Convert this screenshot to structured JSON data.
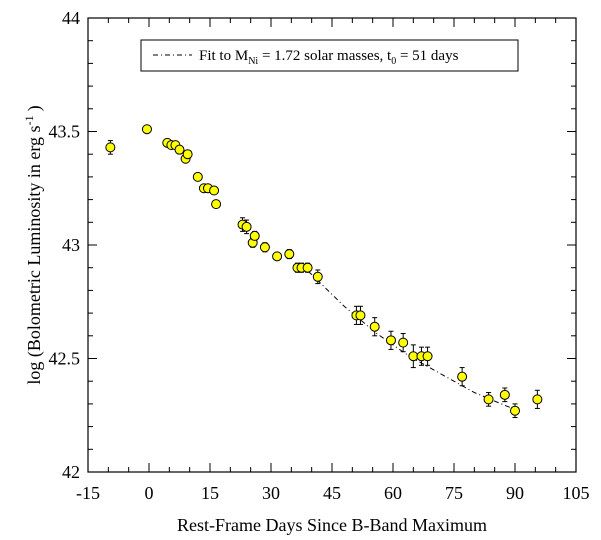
{
  "chart_data": {
    "type": "scatter",
    "xlabel": "Rest-Frame Days Since B-Band Maximum",
    "ylabel_main": "log (Bolometric Luminosity in erg s",
    "ylabel_sup": "-1",
    "ylabel_close": ")",
    "xlim": [
      -15,
      105
    ],
    "ylim": [
      42,
      44
    ],
    "xticks": [
      -15,
      0,
      15,
      30,
      45,
      60,
      75,
      90,
      105
    ],
    "xtick_labels": [
      "-15",
      "0",
      "15",
      "30",
      "45",
      "60",
      "75",
      "90",
      "105"
    ],
    "yticks": [
      42,
      42.5,
      43,
      43.5,
      44
    ],
    "ytick_labels": [
      "42",
      "42.5",
      "43",
      "43.5",
      "44"
    ],
    "grid": false,
    "marker_color": "#ffff00",
    "legend": {
      "position": "top-right",
      "prefix": "Fit to M",
      "sub1": "Ni",
      "mid": " = 1.72 solar masses, t",
      "sub2": "0",
      "suffix": " = 51 days"
    },
    "series": [
      {
        "kind": "points",
        "x": [
          -9.5,
          -0.5,
          4.5,
          5.5,
          6.5,
          7.5,
          9.0,
          9.5,
          12.0,
          13.5,
          14.5,
          16.0,
          16.5,
          23.0,
          24.0,
          25.5,
          26.0,
          28.5,
          31.5,
          34.5,
          36.5,
          37.5,
          39.0,
          41.5,
          51.0,
          52.0,
          55.5,
          59.5,
          62.5,
          65.0,
          67.0,
          68.5,
          77.0,
          83.5,
          87.5,
          90.0,
          95.5
        ],
        "y": [
          43.43,
          43.51,
          43.45,
          43.44,
          43.44,
          43.42,
          43.38,
          43.4,
          43.3,
          43.25,
          43.25,
          43.24,
          43.18,
          43.09,
          43.08,
          43.01,
          43.04,
          42.99,
          42.95,
          42.96,
          42.9,
          42.9,
          42.9,
          42.86,
          42.69,
          42.69,
          42.64,
          42.58,
          42.57,
          42.51,
          42.51,
          42.51,
          42.42,
          42.32,
          42.34,
          42.27,
          42.32
        ],
        "yerr": [
          0.03,
          0.0,
          0.0,
          0.0,
          0.0,
          0.0,
          0.0,
          0.0,
          0.0,
          0.0,
          0.0,
          0.0,
          0.0,
          0.03,
          0.03,
          0.02,
          0.02,
          0.02,
          0.0,
          0.02,
          0.02,
          0.02,
          0.02,
          0.03,
          0.04,
          0.04,
          0.04,
          0.04,
          0.04,
          0.05,
          0.04,
          0.04,
          0.04,
          0.03,
          0.03,
          0.03,
          0.04
        ]
      },
      {
        "kind": "fit-line",
        "x": [
          37,
          40,
          44,
          48,
          52,
          56,
          60,
          64,
          68,
          72,
          76,
          80,
          84,
          88,
          91
        ],
        "y": [
          42.92,
          42.87,
          42.8,
          42.73,
          42.67,
          42.61,
          42.56,
          42.51,
          42.47,
          42.43,
          42.39,
          42.35,
          42.32,
          42.29,
          42.27
        ]
      }
    ]
  }
}
